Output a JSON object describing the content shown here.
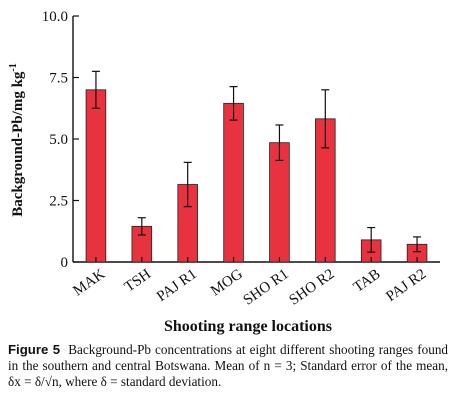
{
  "chart_data": {
    "type": "bar",
    "categories": [
      "MAK",
      "TSH",
      "PAJ R1",
      "MOG",
      "SHO R1",
      "SHO R2",
      "TAB",
      "PAJ R2"
    ],
    "series": [
      {
        "values": [
          7.0,
          1.45,
          3.15,
          6.45,
          4.85,
          5.82,
          0.9,
          0.72
        ],
        "errors": [
          0.75,
          0.35,
          0.9,
          0.68,
          0.72,
          1.18,
          0.5,
          0.3
        ],
        "color": "#e8323f"
      }
    ],
    "ylim": [
      0,
      10
    ],
    "yticks": [
      "0",
      "2.5",
      "5.0",
      "7.5",
      "10.0"
    ],
    "ytick_values": [
      0,
      2.5,
      5.0,
      7.5,
      10.0
    ],
    "ylabel": "Background-Pb/mg kg",
    "ylabel_sup": "-1",
    "xlabel": "Shooting range locations",
    "grid": false,
    "bar_color": "#e8323f"
  },
  "caption": {
    "figure_label": "Figure 5",
    "text": "Background-Pb concentrations at eight different shooting ranges found in the southern and central Botswana. Mean of n = 3; Standard error of the mean, δx = δ/√n, where δ = standard deviation."
  }
}
